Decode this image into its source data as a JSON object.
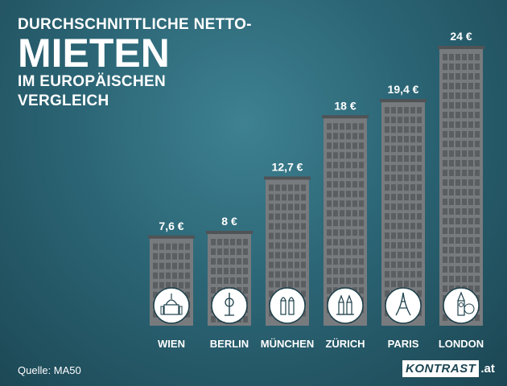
{
  "title": {
    "line1": "DURCHSCHNITTLICHE NETTO-",
    "line2": "MIETEN",
    "line3": "IM EUROPÄISCHEN",
    "line4": "VERGLEICH"
  },
  "source": "Quelle: MA50",
  "brand": {
    "name": "KONTRAST",
    "tld": ".at"
  },
  "colors": {
    "building": "#787b7e",
    "window": "#5b5e61",
    "roof": "#505356",
    "text": "#ffffff"
  },
  "chart_data": {
    "type": "bar",
    "title": "DURCHSCHNITTLICHE NETTO-MIETEN IM EUROPÄISCHEN VERGLEICH",
    "categories": [
      "WIEN",
      "BERLIN",
      "MÜNCHEN",
      "ZÜRICH",
      "PARIS",
      "LONDON"
    ],
    "values": [
      7.6,
      8,
      12.7,
      18,
      19.4,
      24
    ],
    "value_labels": [
      "7,6 €",
      "8 €",
      "12,7 €",
      "18 €",
      "19,4 €",
      "24 €"
    ],
    "icons": [
      "wien-landmark-icon",
      "berlin-tv-tower-icon",
      "muenchen-frauenkirche-icon",
      "zuerich-grossmuenster-icon",
      "paris-eiffel-tower-icon",
      "london-big-ben-icon"
    ],
    "unit": "€",
    "xlabel": "",
    "ylabel": "",
    "ylim": [
      0,
      24
    ],
    "grid": false,
    "legend": "none"
  }
}
